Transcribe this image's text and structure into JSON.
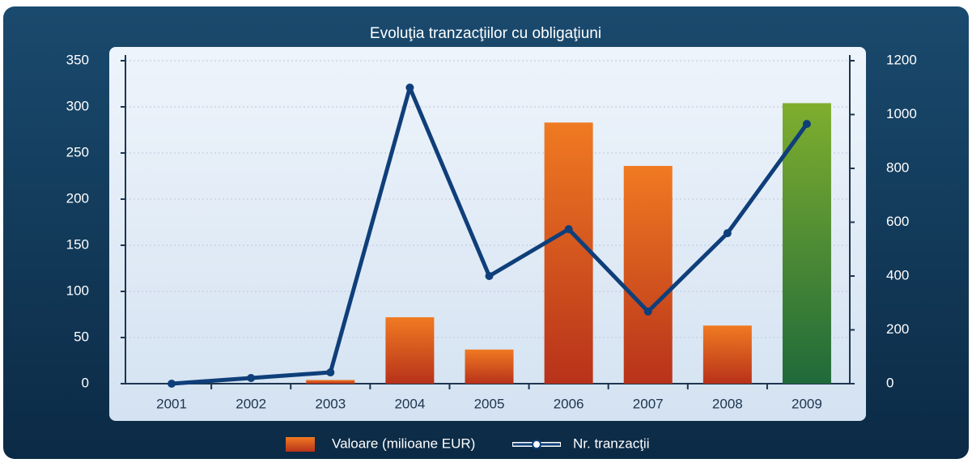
{
  "chart_data": {
    "type": "bar",
    "title": "Evoluţia tranzacţiilor cu obligaţiuni",
    "categories": [
      "2001",
      "2002",
      "2003",
      "2004",
      "2005",
      "2006",
      "2007",
      "2008",
      "2009"
    ],
    "series": [
      {
        "name": "Valoare (milioane EUR)",
        "type": "bar",
        "color": "#e0651e",
        "colors": [
          "#e0651e",
          "#e0651e",
          "#e0651e",
          "#e0651e",
          "#e0651e",
          "#e0651e",
          "#e0651e",
          "#e0651e",
          "#5c9a2c"
        ],
        "values": [
          0,
          0,
          4,
          72,
          37,
          283,
          236,
          63,
          304
        ]
      },
      {
        "name": "Nr. tranzacţii",
        "type": "line",
        "axis": "y2",
        "color": "#0f3f7a",
        "values": [
          0,
          21,
          42,
          1100,
          400,
          574,
          268,
          559,
          965
        ]
      }
    ],
    "ylim": [
      0,
      350
    ],
    "yticks": [
      0,
      50,
      100,
      150,
      200,
      250,
      300,
      350
    ],
    "y2lim": [
      0,
      1200
    ],
    "y2ticks": [
      0,
      200,
      400,
      600,
      800,
      1000,
      1200
    ],
    "grid": true,
    "legend": "bottom"
  }
}
